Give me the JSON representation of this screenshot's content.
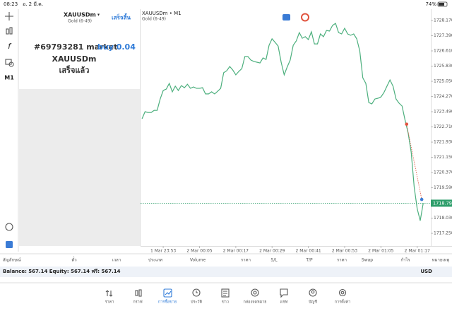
{
  "status_bar": {
    "time": "08:23",
    "date": "อ. 2 มี.ค.",
    "battery": "74%"
  },
  "toolbar": {
    "timeframe": "M1"
  },
  "order_panel": {
    "symbol": "XAUUSDm",
    "description": "Gold (6-49)",
    "done": "เสร็จสิ้น",
    "order": "#69793281 market",
    "order_action": "buy 0.04",
    "order_symbol": "XAUUSDm",
    "status": "เสร็จแล้ว"
  },
  "chart_data": {
    "type": "line",
    "title": "XAUUSDm • M1",
    "subtitle": "Gold (6-49)",
    "color": "#4caf7d",
    "x": [
      -7,
      -6,
      -5,
      -4,
      -3,
      -2,
      -1,
      0,
      1,
      2,
      3,
      4,
      5,
      6,
      7,
      8,
      9,
      10,
      11,
      12,
      13,
      14,
      15,
      16,
      17,
      18,
      19,
      20,
      21,
      22,
      23,
      24,
      25,
      26,
      27,
      28,
      29,
      30,
      31,
      32,
      33,
      34,
      35,
      36,
      37,
      38,
      39,
      40,
      41,
      42,
      43,
      44,
      45,
      46,
      47,
      48,
      49,
      50,
      51,
      52,
      53,
      54,
      55,
      56,
      57,
      58,
      59,
      60,
      61,
      62,
      63,
      64,
      65,
      66,
      67,
      68,
      69,
      70,
      71,
      72,
      73,
      74,
      75,
      76,
      77,
      78,
      79,
      80,
      81,
      82,
      83,
      84,
      85,
      86
    ],
    "values": [
      1723.13,
      1723.49,
      1723.45,
      1723.45,
      1723.56,
      1723.56,
      1724.14,
      1724.58,
      1724.65,
      1724.94,
      1724.51,
      1724.8,
      1724.58,
      1724.83,
      1724.72,
      1724.9,
      1724.69,
      1724.76,
      1724.69,
      1724.69,
      1724.72,
      1724.4,
      1724.4,
      1724.51,
      1724.4,
      1724.54,
      1724.69,
      1725.49,
      1725.59,
      1725.81,
      1725.63,
      1725.38,
      1725.56,
      1725.7,
      1726.32,
      1726.32,
      1726.14,
      1726.07,
      1726.03,
      1725.99,
      1726.25,
      1726.17,
      1726.9,
      1727.23,
      1727.05,
      1726.86,
      1726.03,
      1725.38,
      1725.78,
      1726.14,
      1726.9,
      1727.12,
      1727.55,
      1727.26,
      1727.34,
      1727.19,
      1727.59,
      1726.97,
      1726.97,
      1727.48,
      1727.34,
      1727.66,
      1727.63,
      1727.92,
      1728.02,
      1727.55,
      1727.48,
      1727.77,
      1727.48,
      1727.41,
      1727.48,
      1727.23,
      1726.61,
      1725.23,
      1724.94,
      1723.96,
      1723.89,
      1724.14,
      1724.18,
      1724.25,
      1724.47,
      1724.8,
      1725.12,
      1724.8,
      1724.14,
      1723.93,
      1723.78,
      1723.05,
      1722.4,
      1721.42,
      1719.61,
      1718.52,
      1717.9,
      1718.81
    ],
    "xlim": [
      -7.5,
      88.5
    ],
    "xticks": [
      {
        "value": 0,
        "label": "1 Mar 23:53"
      },
      {
        "value": 12,
        "label": "2 Mar 00:05"
      },
      {
        "value": 24,
        "label": "2 Mar 00:17"
      },
      {
        "value": 36,
        "label": "2 Mar 00:29"
      },
      {
        "value": 48,
        "label": "2 Mar 00:41"
      },
      {
        "value": 60,
        "label": "2 Mar 00:53"
      },
      {
        "value": 72,
        "label": "2 Mar 01:05"
      },
      {
        "value": 84,
        "label": "2 Mar 01:17"
      }
    ],
    "ylim": [
      1716.6,
      1728.75
    ],
    "yticks": [
      {
        "value": 1728.17,
        "label": "1728.170"
      },
      {
        "value": 1727.39,
        "label": "1727.390"
      },
      {
        "value": 1726.61,
        "label": "1726.610"
      },
      {
        "value": 1725.83,
        "label": "1725.830"
      },
      {
        "value": 1725.05,
        "label": "1725.050"
      },
      {
        "value": 1724.27,
        "label": "1724.270"
      },
      {
        "value": 1723.49,
        "label": "1723.490"
      },
      {
        "value": 1722.71,
        "label": "1722.710"
      },
      {
        "value": 1721.93,
        "label": "1721.930"
      },
      {
        "value": 1721.15,
        "label": "1721.150"
      },
      {
        "value": 1720.37,
        "label": "1720.370"
      },
      {
        "value": 1719.59,
        "label": "1719.590"
      },
      {
        "value": 1718.03,
        "label": "1718.030"
      },
      {
        "value": 1717.25,
        "label": "1717.250"
      }
    ],
    "current_price": {
      "value": 1718.797,
      "color": "#2e9e6b"
    },
    "trade": {
      "x": [
        80.5,
        85.5
      ],
      "values": [
        1722.85,
        1718.99
      ],
      "colors": [
        "#e0533d",
        "#3a7bd5"
      ]
    }
  },
  "positions_table": {
    "columns": [
      "สัญลักษณ์",
      "ตั๋ว",
      "เวลา",
      "ประเภท",
      "Volume",
      "ราคา",
      "S/L",
      "T/P",
      "ราคา",
      "Swap",
      "กำไร",
      "หมายเหตุ"
    ]
  },
  "account": {
    "summary": "Balance: 567.14 Equity: 567.14 ฟรี: 567.14",
    "currency": "USD"
  },
  "nav": {
    "items": [
      "ราคา",
      "กราฟ",
      "การซื้อขาย",
      "ประวัติ",
      "ข่าว",
      "กล่องจดหมาย",
      "แชท",
      "บัญชี",
      "การตั้งค่า"
    ],
    "active": 2
  }
}
